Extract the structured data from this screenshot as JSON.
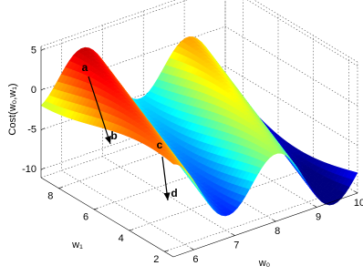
{
  "chart_data": {
    "type": "surface",
    "xlabel": "w₀",
    "ylabel": "w₁",
    "zlabel": "Cost(w₀,w₁)",
    "xlim": [
      5.5,
      10
    ],
    "ylim": [
      1.5,
      9
    ],
    "zlim": [
      -11,
      5.5
    ],
    "xticks": [
      6,
      7,
      8,
      9,
      10
    ],
    "yticks": [
      2,
      4,
      6,
      8
    ],
    "zticks": [
      -10,
      -5,
      0,
      5
    ],
    "grid": true,
    "annotations": [
      "a",
      "b",
      "c",
      "d"
    ]
  }
}
